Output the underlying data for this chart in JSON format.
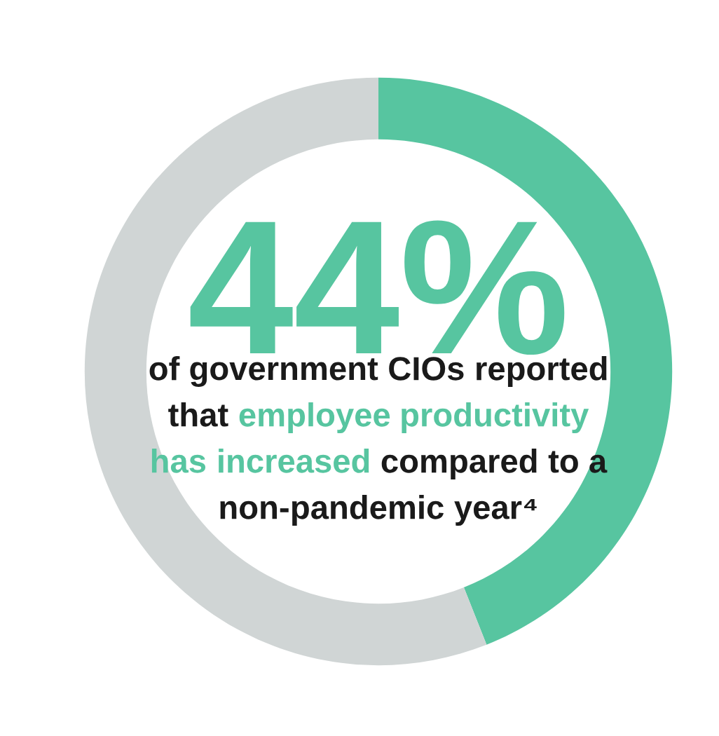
{
  "chart_data": {
    "type": "donut",
    "categories": [
      null,
      null
    ],
    "values": [
      44,
      56
    ],
    "colors": [
      "#57c5a0",
      "#d0d5d5"
    ],
    "value_labels": [
      "44%",
      null
    ],
    "annotations": [
      "of government CIOs reported that",
      "employee productivity has increased",
      "compared to a non-pandemic year⁴"
    ],
    "legend": false
  }
}
